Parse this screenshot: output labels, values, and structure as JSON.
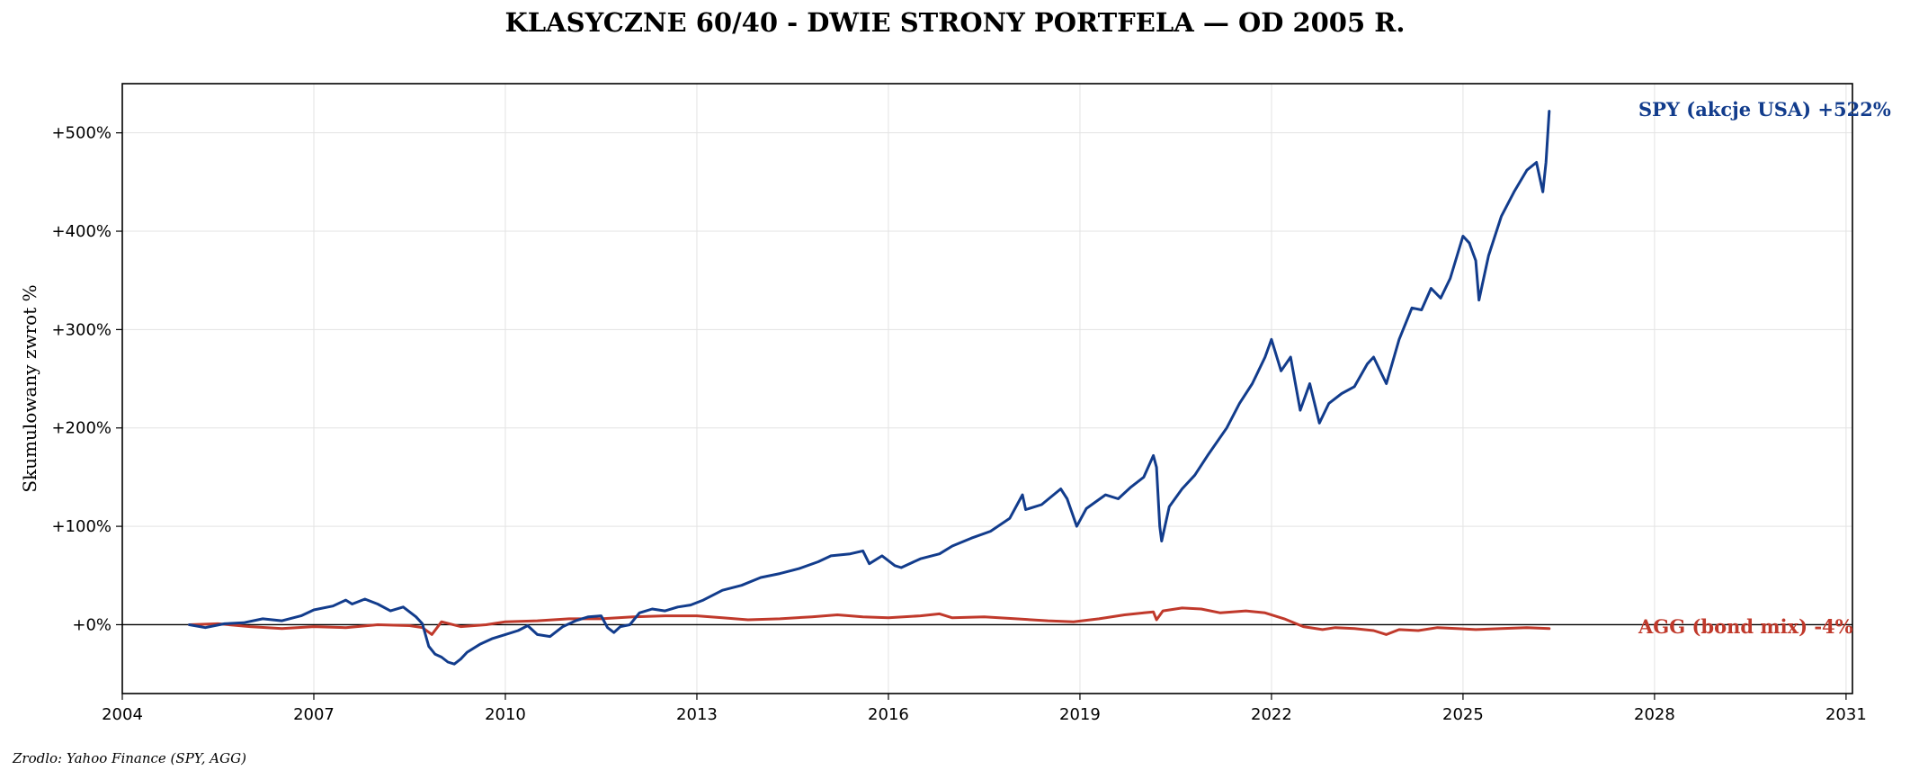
{
  "chart_data": {
    "type": "line",
    "title": "KLASYCZNE 60/40 - DWIE STRONY PORTFELA — OD 2005 R.",
    "ylabel": "Skumulowany zwrot %",
    "xlabel": "",
    "source": "Zrodlo: Yahoo Finance (SPY, AGG)",
    "xlim": [
      2004.0,
      2031.1
    ],
    "ylim": [
      -70,
      550
    ],
    "grid": true,
    "x_ticks": [
      2004,
      2007,
      2010,
      2013,
      2016,
      2019,
      2022,
      2025,
      2028,
      2031
    ],
    "y_ticks": [
      0,
      100,
      200,
      300,
      400,
      500
    ],
    "y_tick_labels": [
      "+0%",
      "+100%",
      "+200%",
      "+300%",
      "+400%",
      "+500%"
    ],
    "zero_line": true,
    "series": [
      {
        "name": "SPY (akcje USA)",
        "color": "#123c8c",
        "end_label": "SPY (akcje USA)  +522%",
        "points": [
          [
            2005.05,
            0
          ],
          [
            2005.3,
            -3
          ],
          [
            2005.6,
            1
          ],
          [
            2005.9,
            2
          ],
          [
            2006.2,
            6
          ],
          [
            2006.5,
            4
          ],
          [
            2006.8,
            9
          ],
          [
            2007.0,
            15
          ],
          [
            2007.3,
            19
          ],
          [
            2007.5,
            25
          ],
          [
            2007.6,
            21
          ],
          [
            2007.8,
            26
          ],
          [
            2008.0,
            21
          ],
          [
            2008.2,
            14
          ],
          [
            2008.4,
            18
          ],
          [
            2008.6,
            8
          ],
          [
            2008.7,
            1
          ],
          [
            2008.8,
            -22
          ],
          [
            2008.9,
            -30
          ],
          [
            2009.0,
            -33
          ],
          [
            2009.1,
            -38
          ],
          [
            2009.2,
            -40
          ],
          [
            2009.3,
            -35
          ],
          [
            2009.4,
            -28
          ],
          [
            2009.6,
            -20
          ],
          [
            2009.8,
            -14
          ],
          [
            2010.0,
            -10
          ],
          [
            2010.2,
            -6
          ],
          [
            2010.35,
            -1
          ],
          [
            2010.5,
            -10
          ],
          [
            2010.7,
            -12
          ],
          [
            2010.9,
            -2
          ],
          [
            2011.1,
            4
          ],
          [
            2011.3,
            8
          ],
          [
            2011.5,
            9
          ],
          [
            2011.6,
            -3
          ],
          [
            2011.7,
            -8
          ],
          [
            2011.8,
            -2
          ],
          [
            2011.95,
            0
          ],
          [
            2012.1,
            12
          ],
          [
            2012.3,
            16
          ],
          [
            2012.5,
            14
          ],
          [
            2012.7,
            18
          ],
          [
            2012.9,
            20
          ],
          [
            2013.1,
            25
          ],
          [
            2013.4,
            35
          ],
          [
            2013.7,
            40
          ],
          [
            2014.0,
            48
          ],
          [
            2014.3,
            52
          ],
          [
            2014.6,
            57
          ],
          [
            2014.9,
            64
          ],
          [
            2015.1,
            70
          ],
          [
            2015.4,
            72
          ],
          [
            2015.6,
            75
          ],
          [
            2015.7,
            62
          ],
          [
            2015.9,
            70
          ],
          [
            2016.1,
            60
          ],
          [
            2016.2,
            58
          ],
          [
            2016.5,
            67
          ],
          [
            2016.8,
            72
          ],
          [
            2017.0,
            80
          ],
          [
            2017.3,
            88
          ],
          [
            2017.6,
            95
          ],
          [
            2017.9,
            108
          ],
          [
            2018.1,
            132
          ],
          [
            2018.15,
            117
          ],
          [
            2018.4,
            122
          ],
          [
            2018.7,
            138
          ],
          [
            2018.8,
            128
          ],
          [
            2018.95,
            100
          ],
          [
            2019.1,
            118
          ],
          [
            2019.4,
            132
          ],
          [
            2019.6,
            128
          ],
          [
            2019.8,
            140
          ],
          [
            2020.0,
            150
          ],
          [
            2020.15,
            172
          ],
          [
            2020.2,
            160
          ],
          [
            2020.25,
            100
          ],
          [
            2020.28,
            85
          ],
          [
            2020.4,
            120
          ],
          [
            2020.6,
            138
          ],
          [
            2020.8,
            152
          ],
          [
            2021.0,
            172
          ],
          [
            2021.3,
            200
          ],
          [
            2021.5,
            225
          ],
          [
            2021.7,
            245
          ],
          [
            2021.9,
            272
          ],
          [
            2022.0,
            290
          ],
          [
            2022.15,
            258
          ],
          [
            2022.3,
            272
          ],
          [
            2022.45,
            218
          ],
          [
            2022.6,
            245
          ],
          [
            2022.75,
            205
          ],
          [
            2022.9,
            225
          ],
          [
            2023.1,
            235
          ],
          [
            2023.3,
            242
          ],
          [
            2023.5,
            265
          ],
          [
            2023.6,
            272
          ],
          [
            2023.8,
            245
          ],
          [
            2024.0,
            290
          ],
          [
            2024.2,
            322
          ],
          [
            2024.35,
            320
          ],
          [
            2024.5,
            342
          ],
          [
            2024.65,
            332
          ],
          [
            2024.8,
            352
          ],
          [
            2025.0,
            395
          ],
          [
            2025.1,
            388
          ],
          [
            2025.2,
            370
          ],
          [
            2025.25,
            330
          ],
          [
            2025.3,
            345
          ],
          [
            2025.4,
            375
          ],
          [
            2025.6,
            415
          ],
          [
            2025.8,
            440
          ],
          [
            2026.0,
            462
          ],
          [
            2026.15,
            470
          ],
          [
            2026.25,
            440
          ],
          [
            2026.3,
            470
          ],
          [
            2026.35,
            522
          ]
        ]
      },
      {
        "name": "AGG (bond mix)",
        "color": "#c0392b",
        "end_label": "AGG (bond mix)  -4%",
        "points": [
          [
            2005.05,
            0
          ],
          [
            2005.5,
            1
          ],
          [
            2006.0,
            -2
          ],
          [
            2006.5,
            -4
          ],
          [
            2007.0,
            -2
          ],
          [
            2007.5,
            -3
          ],
          [
            2008.0,
            0
          ],
          [
            2008.5,
            -1
          ],
          [
            2008.7,
            -3
          ],
          [
            2008.85,
            -10
          ],
          [
            2009.0,
            3
          ],
          [
            2009.3,
            -2
          ],
          [
            2009.7,
            0
          ],
          [
            2010.0,
            3
          ],
          [
            2010.5,
            4
          ],
          [
            2011.0,
            6
          ],
          [
            2011.5,
            6
          ],
          [
            2012.0,
            8
          ],
          [
            2012.5,
            9
          ],
          [
            2013.0,
            9
          ],
          [
            2013.4,
            7
          ],
          [
            2013.8,
            5
          ],
          [
            2014.3,
            6
          ],
          [
            2014.8,
            8
          ],
          [
            2015.2,
            10
          ],
          [
            2015.6,
            8
          ],
          [
            2016.0,
            7
          ],
          [
            2016.5,
            9
          ],
          [
            2016.8,
            11
          ],
          [
            2017.0,
            7
          ],
          [
            2017.5,
            8
          ],
          [
            2018.0,
            6
          ],
          [
            2018.5,
            4
          ],
          [
            2018.9,
            3
          ],
          [
            2019.3,
            6
          ],
          [
            2019.7,
            10
          ],
          [
            2020.0,
            12
          ],
          [
            2020.15,
            13
          ],
          [
            2020.2,
            5
          ],
          [
            2020.3,
            14
          ],
          [
            2020.6,
            17
          ],
          [
            2020.9,
            16
          ],
          [
            2021.2,
            12
          ],
          [
            2021.6,
            14
          ],
          [
            2021.9,
            12
          ],
          [
            2022.2,
            6
          ],
          [
            2022.5,
            -2
          ],
          [
            2022.8,
            -5
          ],
          [
            2023.0,
            -3
          ],
          [
            2023.3,
            -4
          ],
          [
            2023.6,
            -6
          ],
          [
            2023.8,
            -10
          ],
          [
            2024.0,
            -5
          ],
          [
            2024.3,
            -6
          ],
          [
            2024.6,
            -3
          ],
          [
            2024.9,
            -4
          ],
          [
            2025.2,
            -5
          ],
          [
            2025.6,
            -4
          ],
          [
            2026.0,
            -3
          ],
          [
            2026.35,
            -4
          ]
        ]
      }
    ]
  }
}
